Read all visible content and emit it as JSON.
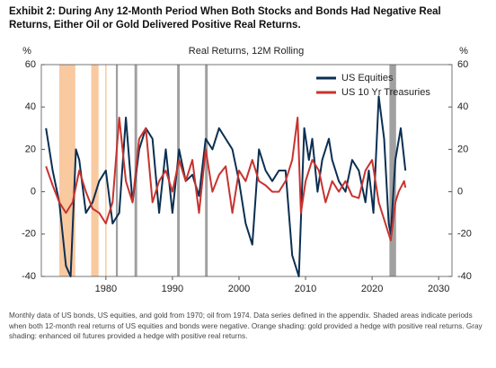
{
  "chart_data": {
    "type": "line",
    "title": "Exhibit 2: During Any 12-Month Period When Both Stocks and Bonds Had Negative Real Returns, Either Oil or Gold Delivered Positive Real Returns.",
    "subtitle": "Real Returns, 12M Rolling",
    "ylabel": "%",
    "y2label": "%",
    "footnote": "Monthly data of US bonds, US equities, and gold from 1970; oil from 1974. Data series defined in the appendix. Shaded areas indicate periods when both 12-month real returns of US equities and bonds were negative. Orange shading: gold provided a hedge with positive real returns. Gray shading: enhanced oil futures provided a hedge with positive real returns.",
    "xlim": [
      1970.3,
      2032
    ],
    "xticks": [
      1980,
      1990,
      2000,
      2010,
      2020,
      2030
    ],
    "ylim": [
      -40,
      60
    ],
    "yticks": [
      -40,
      -20,
      0,
      20,
      40,
      60
    ],
    "y2lim": [
      -40,
      60
    ],
    "y2ticks": [
      -40,
      -20,
      0,
      20,
      40,
      60
    ],
    "legend": "upper right",
    "shaded_periods": [
      {
        "start": 1973.0,
        "end": 1975.4,
        "color": "#f9c9a0"
      },
      {
        "start": 1977.8,
        "end": 1978.9,
        "color": "#f9c9a0"
      },
      {
        "start": 1979.9,
        "end": 1980.1,
        "color": "#f9c9a0"
      },
      {
        "start": 1981.5,
        "end": 1981.8,
        "color": "#a0a0a0"
      },
      {
        "start": 1984.3,
        "end": 1984.7,
        "color": "#a0a0a0"
      },
      {
        "start": 1990.7,
        "end": 1991.1,
        "color": "#a0a0a0"
      },
      {
        "start": 1994.9,
        "end": 1995.3,
        "color": "#a0a0a0"
      },
      {
        "start": 2022.6,
        "end": 2023.6,
        "color": "#a0a0a0"
      }
    ],
    "series": [
      {
        "name": "US Equities",
        "color": "#0b2f52",
        "x": [
          1971,
          1972,
          1973,
          1974,
          1974.7,
          1975.5,
          1976,
          1977,
          1978,
          1979,
          1980,
          1981,
          1982,
          1983,
          1984,
          1985,
          1986,
          1987,
          1988,
          1989,
          1990,
          1991,
          1992,
          1993,
          1994,
          1995,
          1996,
          1997,
          1998,
          1999,
          2000,
          2001,
          2002,
          2003,
          2004,
          2005,
          2006,
          2007,
          2008,
          2009,
          2009.8,
          2010.5,
          2011,
          2011.8,
          2012.5,
          2013.5,
          2014,
          2015,
          2016,
          2017,
          2018,
          2019,
          2019.5,
          2020.2,
          2021,
          2021.8,
          2022.5,
          2022.8,
          2023.5,
          2024.3,
          2025
        ],
        "values": [
          30,
          10,
          -5,
          -35,
          -40,
          20,
          15,
          -10,
          -5,
          5,
          10,
          -15,
          -10,
          35,
          -5,
          20,
          30,
          25,
          -10,
          20,
          -10,
          20,
          5,
          8,
          -2,
          25,
          20,
          30,
          25,
          20,
          5,
          -15,
          -25,
          20,
          10,
          5,
          10,
          10,
          -30,
          -40,
          30,
          15,
          25,
          0,
          15,
          25,
          15,
          5,
          0,
          15,
          10,
          -5,
          10,
          -10,
          45,
          25,
          -15,
          -20,
          15,
          30,
          10
        ]
      },
      {
        "name": "US 10 Yr Treasuries",
        "color": "#c8332f",
        "x": [
          1971,
          1972,
          1973,
          1974,
          1975,
          1976,
          1977,
          1978,
          1979,
          1980,
          1981,
          1982,
          1983,
          1984,
          1985,
          1986,
          1987,
          1988,
          1989,
          1990,
          1991,
          1992,
          1993,
          1994,
          1995,
          1996,
          1997,
          1998,
          1999,
          2000,
          2001,
          2002,
          2003,
          2004,
          2005,
          2006,
          2007,
          2008,
          2008.8,
          2009.3,
          2010,
          2011,
          2012,
          2013,
          2014,
          2015,
          2016,
          2017,
          2018,
          2019,
          2020,
          2021,
          2022,
          2022.8,
          2023.5,
          2024,
          2024.8,
          2025
        ],
        "values": [
          12,
          3,
          -5,
          -10,
          -5,
          10,
          0,
          -8,
          -10,
          -15,
          -5,
          35,
          5,
          -5,
          25,
          30,
          -5,
          5,
          10,
          0,
          15,
          5,
          15,
          -10,
          20,
          0,
          8,
          12,
          -10,
          10,
          5,
          15,
          5,
          3,
          0,
          0,
          5,
          15,
          35,
          -10,
          5,
          15,
          10,
          -5,
          5,
          0,
          5,
          -2,
          -3,
          10,
          15,
          -5,
          -15,
          -23,
          -5,
          0,
          5,
          2
        ]
      }
    ]
  }
}
